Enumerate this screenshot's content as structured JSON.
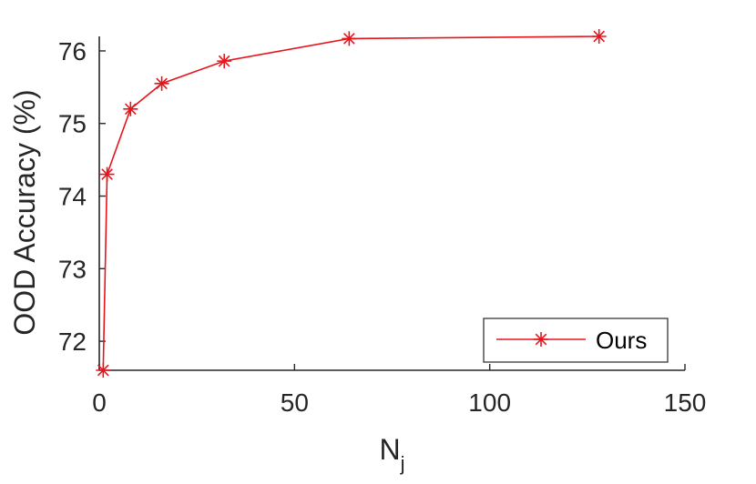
{
  "chart_data": {
    "type": "line",
    "xlabel": "N",
    "xlabel_subscript": "j",
    "ylabel": "OOD Accuracy (%)",
    "xlim": [
      0,
      150
    ],
    "ylim": [
      71.6,
      76.2
    ],
    "xticks": [
      0,
      50,
      100,
      150
    ],
    "yticks": [
      72,
      73,
      74,
      75,
      76
    ],
    "x_tick_labels": [
      "0",
      "50",
      "100",
      "150"
    ],
    "y_tick_labels": [
      "72",
      "73",
      "74",
      "75",
      "76"
    ],
    "grid": false,
    "legend_position": "bottom-right",
    "series": [
      {
        "name": "Ours",
        "color": "#e8141c",
        "marker": "asterisk",
        "x": [
          1,
          2,
          8,
          16,
          32,
          64,
          128
        ],
        "y": [
          71.6,
          74.3,
          75.2,
          75.55,
          75.86,
          76.17,
          76.2
        ]
      }
    ]
  }
}
